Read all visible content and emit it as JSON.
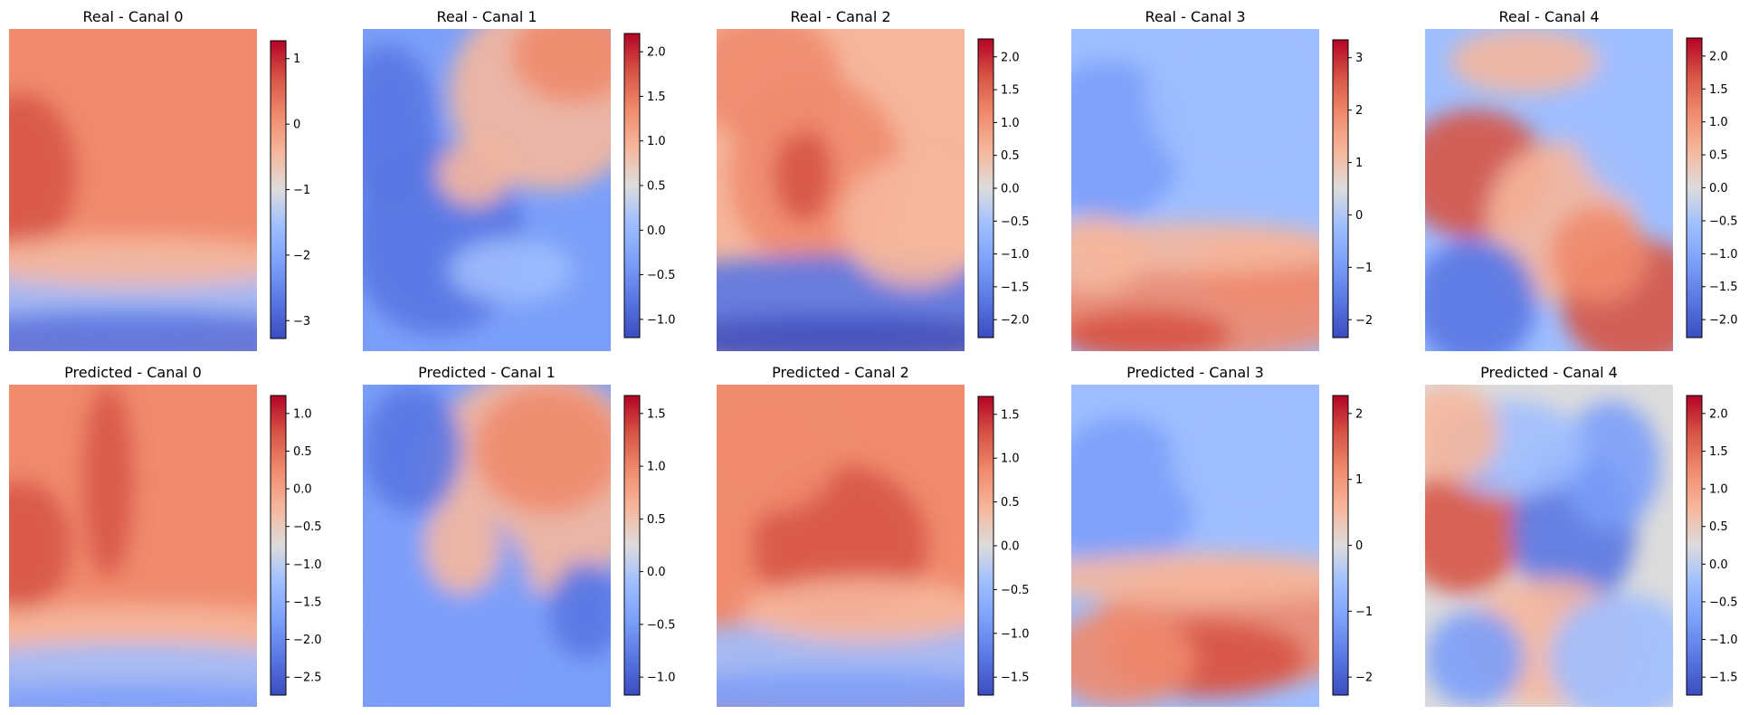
{
  "figure": {
    "panels": [
      {
        "title": "Real - Canal 0",
        "ticks": [
          "1",
          "0",
          "−1",
          "−2",
          "−3"
        ]
      },
      {
        "title": "Real - Canal 1",
        "ticks": [
          "2.0",
          "1.5",
          "1.0",
          "0.5",
          "0.0",
          "−0.5",
          "−1.0"
        ]
      },
      {
        "title": "Real - Canal 2",
        "ticks": [
          "2.0",
          "1.5",
          "1.0",
          "0.5",
          "0.0",
          "−0.5",
          "−1.0",
          "−1.5",
          "−2.0"
        ]
      },
      {
        "title": "Real - Canal 3",
        "ticks": [
          "3",
          "2",
          "1",
          "0",
          "−1",
          "−2"
        ]
      },
      {
        "title": "Real - Canal 4",
        "ticks": [
          "2.0",
          "1.5",
          "1.0",
          "0.5",
          "0.0",
          "−0.5",
          "−1.0",
          "−1.5",
          "−2.0"
        ]
      },
      {
        "title": "Predicted - Canal 0",
        "ticks": [
          "1.0",
          "0.5",
          "0.0",
          "−0.5",
          "−1.0",
          "−1.5",
          "−2.0",
          "−2.5"
        ]
      },
      {
        "title": "Predicted - Canal 1",
        "ticks": [
          "1.5",
          "1.0",
          "0.5",
          "0.0",
          "−0.5",
          "−1.0"
        ]
      },
      {
        "title": "Predicted - Canal 2",
        "ticks": [
          "1.5",
          "1.0",
          "0.5",
          "0.0",
          "−0.5",
          "−1.0",
          "−1.5"
        ]
      },
      {
        "title": "Predicted - Canal 3",
        "ticks": [
          "2",
          "1",
          "0",
          "−1",
          "−2"
        ]
      },
      {
        "title": "Predicted - Canal 4",
        "ticks": [
          "2.0",
          "1.5",
          "1.0",
          "0.5",
          "0.0",
          "−0.5",
          "−1.0",
          "−1.5"
        ]
      }
    ]
  },
  "chart_data": [
    {
      "type": "heatmap",
      "title": "Real - Canal 0",
      "colormap": "coolwarm",
      "value_range": [
        -3.4,
        1.55
      ],
      "colorbar_ticks": [
        1,
        0,
        -1,
        -2,
        -3
      ],
      "pattern": "warm-top-cold-bottom",
      "axes": "off"
    },
    {
      "type": "heatmap",
      "title": "Real - Canal 1",
      "colormap": "coolwarm",
      "value_range": [
        -1.35,
        2.3
      ],
      "colorbar_ticks": [
        2.0,
        1.5,
        1.0,
        0.5,
        0.0,
        -0.5,
        -1.0
      ],
      "pattern": "warm-top-right",
      "axes": "off"
    },
    {
      "type": "heatmap",
      "title": "Real - Canal 2",
      "colormap": "coolwarm",
      "value_range": [
        -2.0,
        2.35
      ],
      "colorbar_ticks": [
        2.0,
        1.5,
        1.0,
        0.5,
        0.0,
        -0.5,
        -1.0,
        -1.5,
        -2.0
      ],
      "pattern": "warm-top-cold-bottom",
      "axes": "off"
    },
    {
      "type": "heatmap",
      "title": "Real - Canal 3",
      "colormap": "coolwarm",
      "value_range": [
        -2.9,
        3.8
      ],
      "colorbar_ticks": [
        3,
        2,
        1,
        0,
        -1,
        -2
      ],
      "pattern": "cold-top-warm-bottom",
      "axes": "off"
    },
    {
      "type": "heatmap",
      "title": "Real - Canal 4",
      "colormap": "coolwarm",
      "value_range": [
        -2.25,
        2.25
      ],
      "colorbar_ticks": [
        2.0,
        1.5,
        1.0,
        0.5,
        0.0,
        -0.5,
        -1.0,
        -1.5,
        -2.0
      ],
      "pattern": "mixed-diagonal",
      "axes": "off"
    },
    {
      "type": "heatmap",
      "title": "Predicted - Canal 0",
      "colormap": "coolwarm",
      "value_range": [
        -2.85,
        1.45
      ],
      "colorbar_ticks": [
        1.0,
        0.5,
        0.0,
        -0.5,
        -1.0,
        -1.5,
        -2.0,
        -2.5
      ],
      "pattern": "warm-top-cold-bottom",
      "axes": "off"
    },
    {
      "type": "heatmap",
      "title": "Predicted - Canal 1",
      "colormap": "coolwarm",
      "value_range": [
        -1.35,
        1.9
      ],
      "colorbar_ticks": [
        1.5,
        1.0,
        0.5,
        0.0,
        -0.5,
        -1.0
      ],
      "pattern": "warm-top-right",
      "axes": "off"
    },
    {
      "type": "heatmap",
      "title": "Predicted - Canal 2",
      "colormap": "coolwarm",
      "value_range": [
        -2.0,
        1.65
      ],
      "colorbar_ticks": [
        1.5,
        1.0,
        0.5,
        0.0,
        -0.5,
        -1.0,
        -1.5
      ],
      "pattern": "warm-top-cold-bottom",
      "axes": "off"
    },
    {
      "type": "heatmap",
      "title": "Predicted - Canal 3",
      "colormap": "coolwarm",
      "value_range": [
        -2.65,
        2.55
      ],
      "colorbar_ticks": [
        2,
        1,
        0,
        -1,
        -2
      ],
      "pattern": "cold-top-warm-bottom",
      "axes": "off"
    },
    {
      "type": "heatmap",
      "title": "Predicted - Canal 4",
      "colormap": "coolwarm",
      "value_range": [
        -1.8,
        2.05
      ],
      "colorbar_ticks": [
        2.0,
        1.5,
        1.0,
        0.5,
        0.0,
        -0.5,
        -1.0,
        -1.5
      ],
      "pattern": "mixed-diagonal",
      "axes": "off"
    }
  ]
}
